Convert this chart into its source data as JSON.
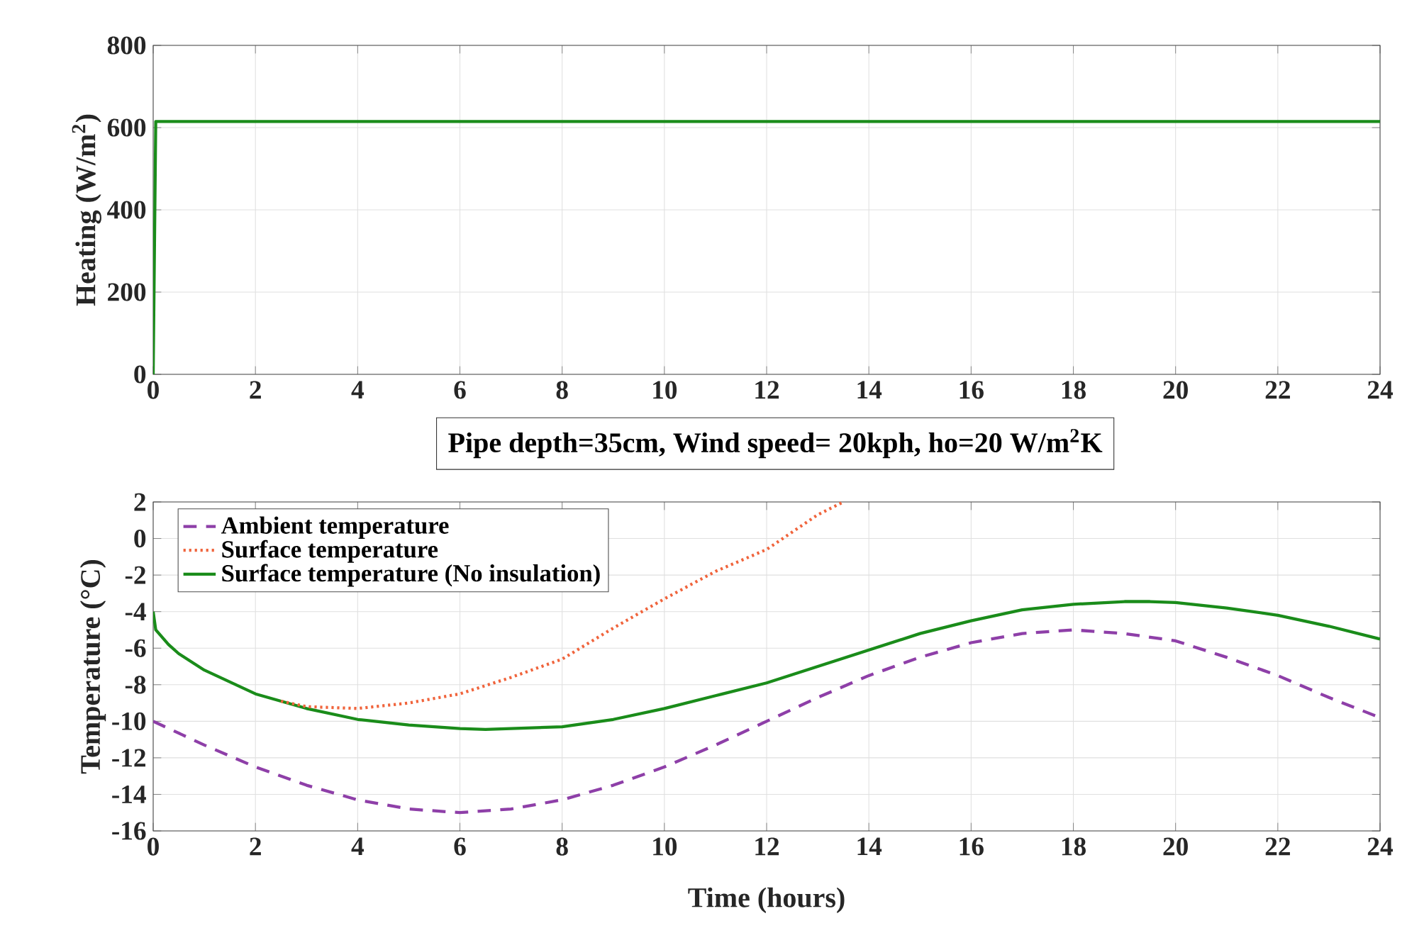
{
  "chart_data": [
    {
      "type": "line",
      "ylabel": "Heating (W/m$^{2}$)",
      "xlim": [
        0,
        24
      ],
      "ylim": [
        0,
        800
      ],
      "xticks": [
        0,
        2,
        4,
        6,
        8,
        10,
        12,
        14,
        16,
        18,
        20,
        22,
        24
      ],
      "yticks": [
        0,
        200,
        400,
        600,
        800
      ],
      "grid": true,
      "marker": "none",
      "series": [
        {
          "color": "#1a8c1a",
          "line_style": "solid",
          "x": [
            0,
            0.05,
            24
          ],
          "values": [
            0,
            615,
            615
          ]
        }
      ]
    },
    {
      "type": "line",
      "title": "Pipe depth=35cm, Wind speed= 20kph, ho=20 W/m$^{2}$K",
      "xlabel": "Time (hours)",
      "ylabel": "Temperature (°C)",
      "xlim": [
        0,
        24
      ],
      "ylim": [
        -16,
        2
      ],
      "xticks": [
        0,
        2,
        4,
        6,
        8,
        10,
        12,
        14,
        16,
        18,
        20,
        22,
        24
      ],
      "yticks": [
        -16,
        -14,
        -12,
        -10,
        -8,
        -6,
        -4,
        -2,
        0,
        2
      ],
      "grid": true,
      "legend": "top left",
      "marker": "none",
      "series": [
        {
          "name": "Ambient temperature",
          "color": "#8e3fa8",
          "line_style": "dashed",
          "x": [
            0,
            1,
            2,
            3,
            4,
            5,
            6,
            7,
            8,
            9,
            10,
            11,
            12,
            13,
            14,
            15,
            16,
            17,
            18,
            19,
            20,
            21,
            22,
            23,
            24
          ],
          "values": [
            -10,
            -11.3,
            -12.5,
            -13.5,
            -14.3,
            -14.8,
            -15,
            -14.8,
            -14.3,
            -13.5,
            -12.5,
            -11.3,
            -10,
            -8.7,
            -7.5,
            -6.5,
            -5.7,
            -5.2,
            -5,
            -5.2,
            -5.6,
            -6.5,
            -7.5,
            -8.7,
            -9.8
          ]
        },
        {
          "name": "Surface temperature",
          "color": "#f0643c",
          "line_style": "dotted",
          "x": [
            2.5,
            3,
            4,
            5,
            6,
            7,
            8,
            9,
            10,
            11,
            12,
            13,
            13.5
          ],
          "values": [
            -8.9,
            -9.2,
            -9.3,
            -9.0,
            -8.5,
            -7.6,
            -6.6,
            -4.9,
            -3.3,
            -1.8,
            -0.6,
            1.3,
            2
          ]
        },
        {
          "name": "Surface temperature (No insulation)",
          "color": "#1a8c1a",
          "line_style": "solid",
          "x": [
            0,
            0.05,
            0.3,
            0.5,
            1,
            2,
            3,
            4,
            5,
            6,
            6.5,
            7,
            8,
            9,
            10,
            11,
            12,
            13,
            14,
            15,
            16,
            17,
            18,
            19,
            19.5,
            20,
            21,
            22,
            23,
            24
          ],
          "values": [
            -4,
            -5,
            -5.8,
            -6.3,
            -7.2,
            -8.5,
            -9.3,
            -9.9,
            -10.2,
            -10.4,
            -10.45,
            -10.4,
            -10.3,
            -9.9,
            -9.3,
            -8.6,
            -7.9,
            -7,
            -6.1,
            -5.2,
            -4.5,
            -3.9,
            -3.6,
            -3.45,
            -3.45,
            -3.5,
            -3.8,
            -4.2,
            -4.8,
            -5.5
          ]
        }
      ]
    }
  ]
}
